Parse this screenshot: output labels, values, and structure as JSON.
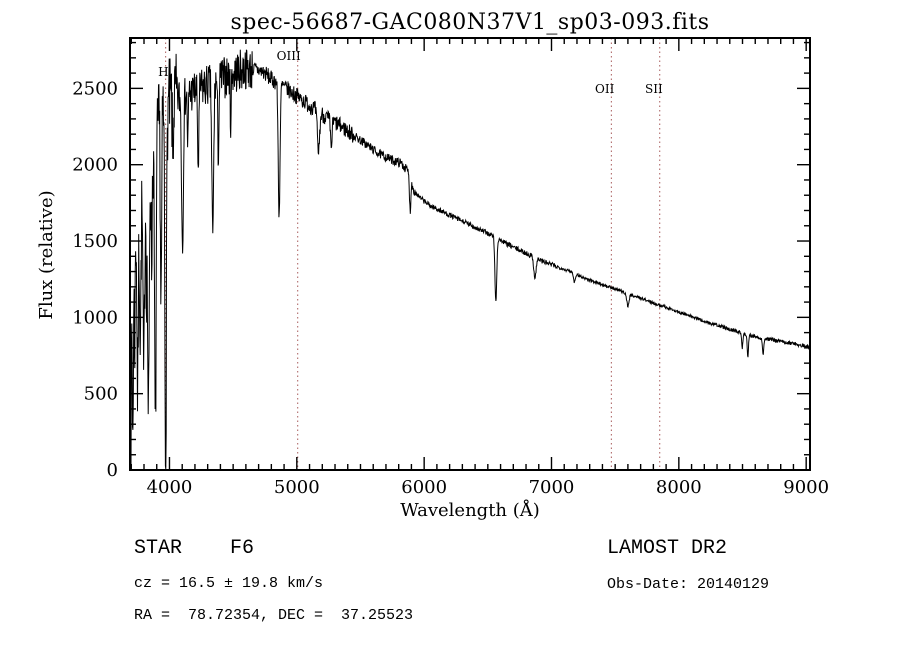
{
  "chart_data": {
    "type": "line",
    "title": "spec-56687-GAC080N37V1_sp03-093.fits",
    "xlabel": "Wavelength (Å)",
    "ylabel": "Flux (relative)",
    "xlim": [
      3690,
      9030
    ],
    "ylim": [
      0,
      2830
    ],
    "x_ticks": [
      4000,
      5000,
      6000,
      7000,
      8000,
      9000
    ],
    "y_ticks": [
      0,
      500,
      1000,
      1500,
      2000,
      2500
    ],
    "x_minor_step": 100,
    "y_minor_step": 100,
    "grid": false,
    "background": "#ffffff",
    "line_color": "#000000",
    "reference_line_color": "#a85c5c",
    "reference_lines": [
      {
        "label": "H",
        "x": 3970,
        "label_y": 76
      },
      {
        "label": "OIII",
        "x": 5007,
        "label_y": 60
      },
      {
        "label": "OII",
        "x": 7470,
        "label_y": 93
      },
      {
        "label": "SII",
        "x": 7850,
        "label_y": 93
      }
    ],
    "spectrum": {
      "sample_step": 3,
      "noise_seed": 7,
      "continuum": [
        [
          3695,
          1450
        ],
        [
          3740,
          1600
        ],
        [
          3780,
          1750
        ],
        [
          3820,
          1900
        ],
        [
          3860,
          2050
        ],
        [
          3900,
          2200
        ],
        [
          3940,
          2320
        ],
        [
          3980,
          2380
        ],
        [
          4020,
          2420
        ],
        [
          4100,
          2450
        ],
        [
          4200,
          2480
        ],
        [
          4300,
          2520
        ],
        [
          4400,
          2560
        ],
        [
          4500,
          2600
        ],
        [
          4600,
          2630
        ],
        [
          4700,
          2620
        ],
        [
          4750,
          2600
        ],
        [
          4800,
          2560
        ],
        [
          4850,
          2540
        ],
        [
          4900,
          2510
        ],
        [
          5000,
          2450
        ],
        [
          5100,
          2390
        ],
        [
          5150,
          2360
        ],
        [
          5250,
          2300
        ],
        [
          5350,
          2250
        ],
        [
          5450,
          2190
        ],
        [
          5550,
          2130
        ],
        [
          5650,
          2070
        ],
        [
          5750,
          2030
        ],
        [
          5820,
          2010
        ],
        [
          5870,
          1960
        ],
        [
          5920,
          1830
        ],
        [
          5970,
          1780
        ],
        [
          6050,
          1730
        ],
        [
          6150,
          1690
        ],
        [
          6250,
          1650
        ],
        [
          6350,
          1610
        ],
        [
          6450,
          1570
        ],
        [
          6550,
          1530
        ],
        [
          6650,
          1480
        ],
        [
          6750,
          1440
        ],
        [
          6850,
          1400
        ],
        [
          6950,
          1360
        ],
        [
          7050,
          1330
        ],
        [
          7150,
          1300
        ],
        [
          7250,
          1260
        ],
        [
          7350,
          1230
        ],
        [
          7450,
          1200
        ],
        [
          7550,
          1170
        ],
        [
          7650,
          1140
        ],
        [
          7750,
          1110
        ],
        [
          7850,
          1080
        ],
        [
          7950,
          1050
        ],
        [
          8050,
          1020
        ],
        [
          8150,
          990
        ],
        [
          8250,
          960
        ],
        [
          8350,
          935
        ],
        [
          8450,
          910
        ],
        [
          8550,
          885
        ],
        [
          8650,
          865
        ],
        [
          8750,
          850
        ],
        [
          8850,
          835
        ],
        [
          8950,
          820
        ],
        [
          9030,
          805
        ]
      ],
      "noise_regions": [
        [
          3695,
          4060,
          300
        ],
        [
          4060,
          4650,
          140
        ],
        [
          4650,
          5450,
          55
        ],
        [
          5450,
          5950,
          30
        ],
        [
          5950,
          7050,
          17
        ],
        [
          7050,
          8250,
          10
        ],
        [
          8250,
          9030,
          12
        ]
      ],
      "absorption_lines": [
        [
          3697,
          4,
          1350
        ],
        [
          3712,
          5,
          1250
        ],
        [
          3727,
          4,
          700
        ],
        [
          3750,
          5,
          1150
        ],
        [
          3771,
          5,
          850
        ],
        [
          3798,
          6,
          1250
        ],
        [
          3820,
          4,
          600
        ],
        [
          3835,
          6,
          1650
        ],
        [
          3860,
          4,
          700
        ],
        [
          3889,
          6,
          1950
        ],
        [
          3934,
          5,
          1200
        ],
        [
          3970,
          6,
          2300
        ],
        [
          4026,
          4,
          400
        ],
        [
          4102,
          7,
          950
        ],
        [
          4144,
          4,
          350
        ],
        [
          4226,
          5,
          520
        ],
        [
          4340,
          7,
          1020
        ],
        [
          4383,
          5,
          470
        ],
        [
          4481,
          4,
          300
        ],
        [
          4861,
          7,
          870
        ],
        [
          5170,
          9,
          260
        ],
        [
          5270,
          6,
          180
        ],
        [
          5890,
          5,
          210
        ],
        [
          6563,
          7,
          430
        ],
        [
          6870,
          9,
          130
        ],
        [
          7180,
          6,
          60
        ],
        [
          7600,
          9,
          80
        ],
        [
          8498,
          5,
          95
        ],
        [
          8542,
          5,
          140
        ],
        [
          8662,
          5,
          115
        ]
      ]
    }
  },
  "annotations": {
    "class_label": "STAR    F6",
    "cz_label": "cz = 16.5 ± 19.8 km/s",
    "radec_label": "RA =  78.72354, DEC =  37.25523",
    "survey_label": "LAMOST DR2",
    "obsdate_label": "Obs-Date: 20140129"
  }
}
